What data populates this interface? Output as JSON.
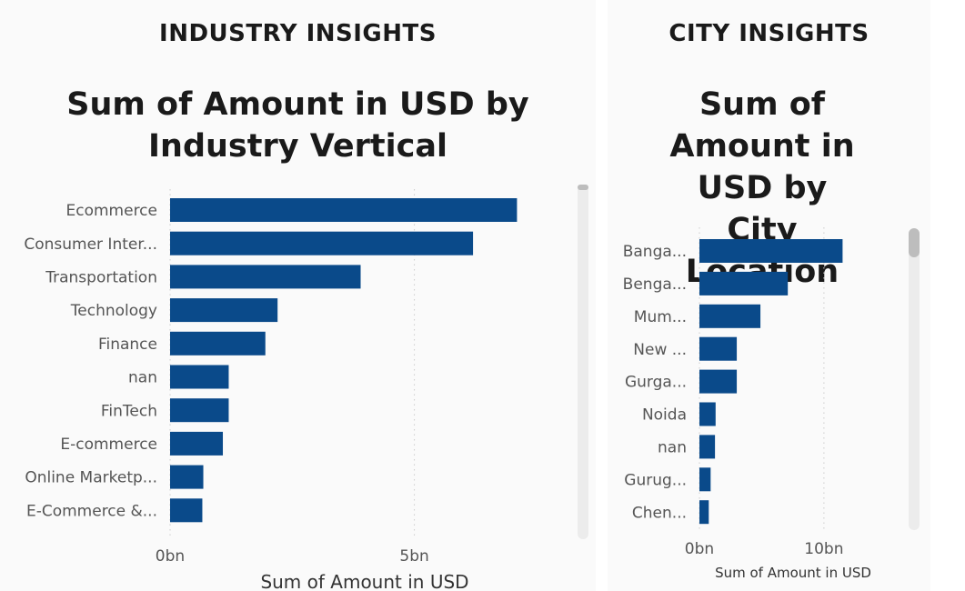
{
  "industry": {
    "section_title": "INDUSTRY INSIGHTS",
    "chart_title": "Sum of Amount in USD by Industry Vertical"
  },
  "city": {
    "section_title": "CITY INSIGHTS",
    "chart_title": "Sum of Amount in USD by City Location"
  },
  "colors": {
    "bar": "#0a4a8a",
    "grid": "#cccccc"
  },
  "chart_data": [
    {
      "type": "bar",
      "orientation": "horizontal",
      "title": "Sum of Amount in USD by Industry Vertical",
      "xlabel": "Sum of Amount in USD",
      "ylabel": "",
      "categories": [
        "Ecommerce",
        "Consumer Inter...",
        "Transportation",
        "Technology",
        "Finance",
        "nan",
        "FinTech",
        "E-commerce",
        "Online Marketp...",
        "E-Commerce &..."
      ],
      "values": [
        7.1,
        6.2,
        3.9,
        2.2,
        1.95,
        1.2,
        1.2,
        1.08,
        0.68,
        0.66
      ],
      "value_unit": "bn",
      "xlim": [
        0,
        8.6
      ],
      "xticks": [
        0,
        5
      ],
      "xtick_labels": [
        "0bn",
        "5bn"
      ],
      "grid": true
    },
    {
      "type": "bar",
      "orientation": "horizontal",
      "title": "Sum of Amount in USD by City Location",
      "xlabel": "Sum of Amount in USD",
      "ylabel": "",
      "categories": [
        "Banga...",
        "Benga...",
        "Mum...",
        "New ...",
        "Gurga...",
        "Noida",
        "nan",
        "Gurug...",
        "Chen..."
      ],
      "values": [
        11.5,
        7.1,
        4.9,
        3.0,
        3.0,
        1.3,
        1.25,
        0.9,
        0.75
      ],
      "value_unit": "bn",
      "xlim": [
        0,
        16
      ],
      "xticks": [
        0,
        10
      ],
      "xtick_labels": [
        "0bn",
        "10bn"
      ],
      "grid": true
    }
  ]
}
